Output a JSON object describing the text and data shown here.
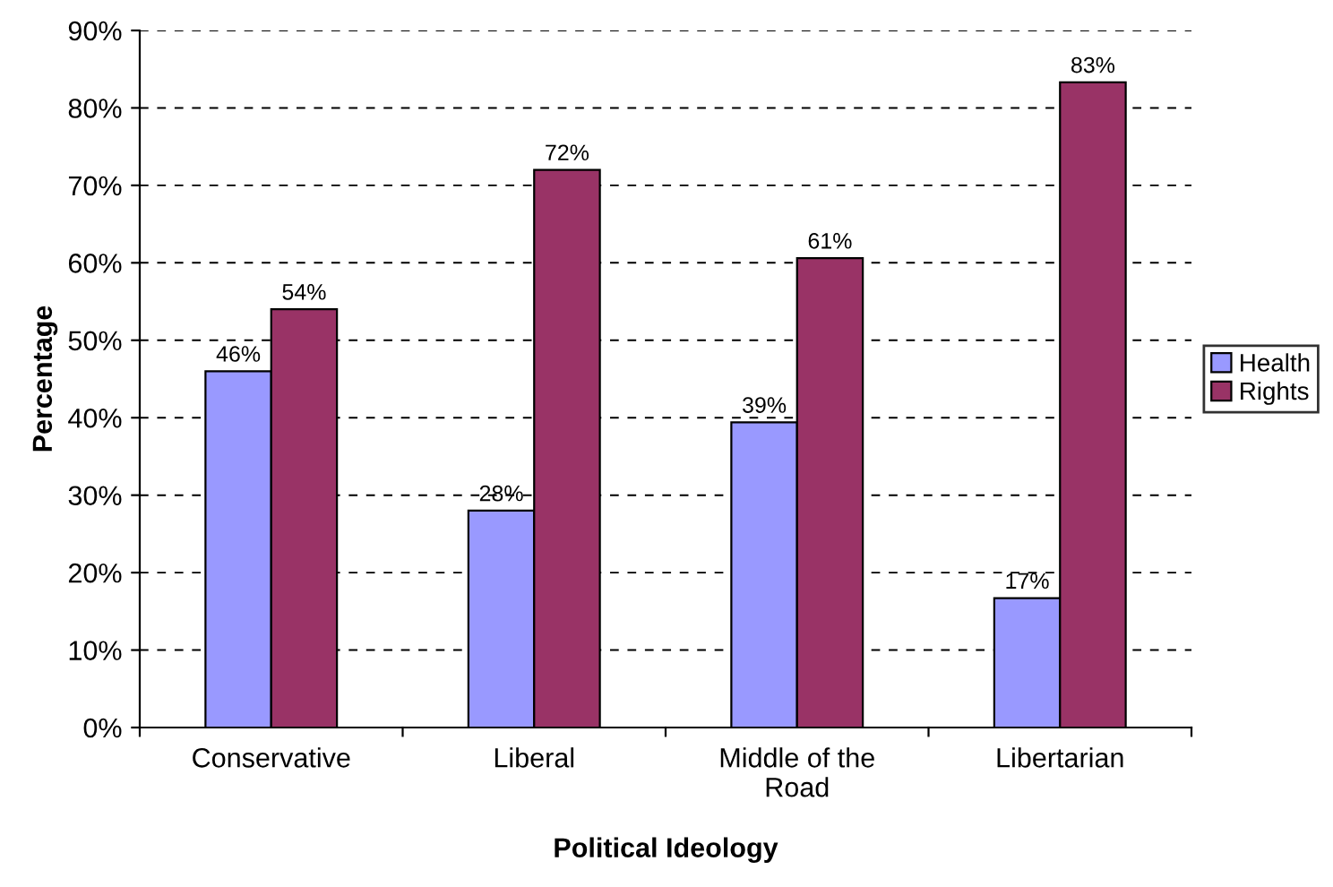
{
  "chart_data": {
    "type": "bar",
    "xlabel": "Political Ideology",
    "ylabel": "Percentage",
    "categories": [
      "Conservative",
      "Liberal",
      "Middle of the\nRoad",
      "Libertarian"
    ],
    "series": [
      {
        "name": "Health",
        "color": "#9999ff",
        "values": [
          46,
          28,
          39.4,
          16.7
        ],
        "value_labels": [
          "46%",
          "28%",
          "39%",
          "17%"
        ]
      },
      {
        "name": "Rights",
        "color": "#993366",
        "values": [
          54,
          72,
          60.6,
          83.3
        ],
        "value_labels": [
          "54%",
          "72%",
          "61%",
          "83%"
        ]
      }
    ],
    "ylim": [
      0,
      90
    ],
    "yticks": [
      {
        "value": 0,
        "label": "0%"
      },
      {
        "value": 10,
        "label": "10%"
      },
      {
        "value": 20,
        "label": "20%"
      },
      {
        "value": 30,
        "label": "30%"
      },
      {
        "value": 40,
        "label": "40%"
      },
      {
        "value": 50,
        "label": "50%"
      },
      {
        "value": 60,
        "label": "60%"
      },
      {
        "value": 70,
        "label": "70%"
      },
      {
        "value": 80,
        "label": "80%"
      },
      {
        "value": 90,
        "label": "90%"
      }
    ],
    "grid": "y",
    "line_style": "dashed",
    "legend": "right"
  }
}
